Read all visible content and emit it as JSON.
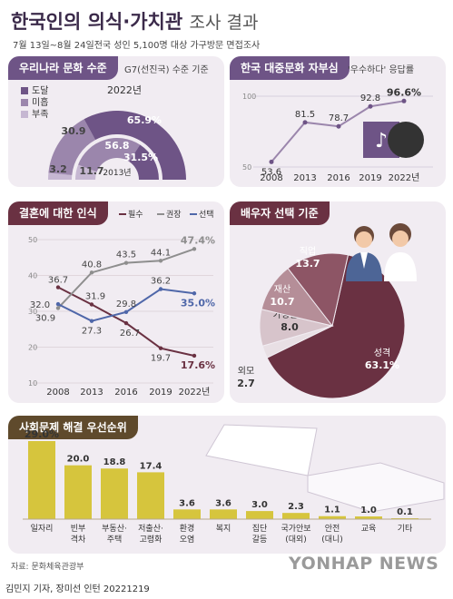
{
  "header": {
    "title_bold": "한국인의 의식·가치관",
    "title_light": "조사 결과",
    "subtitle": "7월 13일~8월 24일전국 성인 5,100명 대상 가구방문 면접조사"
  },
  "footer": {
    "source": "자료: 문화체육관광부",
    "credit": "김민지 기자, 장미선 인턴  20221219",
    "watermark": "YONHAP NEWS"
  },
  "colors": {
    "dark_purple": "#6e5486",
    "mid_purple": "#9b86ac",
    "light_purple": "#c6b7d2",
    "maroon": "#6a3142",
    "gray": "#8e8e8e",
    "blue": "#4f67a9",
    "mustard": "#d6c53d",
    "panel_bg": "#f1ecf2"
  },
  "chart_data": [
    {
      "id": "culture_level",
      "type": "pie",
      "title": "우리나라 문화 수준",
      "note": "G7(선진국) 수준 기준",
      "legend": [
        "도달",
        "미흡",
        "부족"
      ],
      "rings": [
        {
          "year": "2022년",
          "values": [
            65.9,
            30.9,
            3.2
          ],
          "labels": [
            "65.9%",
            "30.9",
            "3.2"
          ]
        },
        {
          "year": "2013년",
          "values": [
            31.5,
            56.8,
            11.7
          ],
          "labels": [
            "31.5%",
            "56.8",
            "11.7"
          ]
        }
      ]
    },
    {
      "id": "pride",
      "type": "line",
      "title": "한국 대중문화 자부심",
      "note": "'우수하다' 응답률",
      "categories": [
        "2008",
        "2013",
        "2016",
        "2019",
        "2022년"
      ],
      "values": [
        53.6,
        81.5,
        78.7,
        92.8,
        96.6
      ],
      "value_labels": [
        "53.6",
        "81.5",
        "78.7",
        "92.8",
        "96.6%"
      ],
      "yticks": [
        50,
        100
      ],
      "ylim": [
        50,
        100
      ]
    },
    {
      "id": "marriage",
      "type": "line",
      "title": "결혼에 대한 인식",
      "categories": [
        "2008",
        "2013",
        "2016",
        "2019",
        "2022년"
      ],
      "yticks": [
        10,
        20,
        30,
        40,
        50
      ],
      "ylim": [
        10,
        50
      ],
      "series": [
        {
          "name": "필수",
          "values": [
            36.7,
            31.9,
            26.7,
            19.7,
            17.6
          ],
          "labels": [
            "36.7",
            "31.9",
            "26.7",
            "19.7",
            "17.6%"
          ]
        },
        {
          "name": "권장",
          "values": [
            30.9,
            40.8,
            43.5,
            44.1,
            47.4
          ],
          "labels": [
            "30.9",
            "40.8",
            "43.5",
            "44.1",
            "47.4%"
          ]
        },
        {
          "name": "선택",
          "values": [
            32.0,
            27.3,
            29.8,
            36.2,
            35.0
          ],
          "labels": [
            "32.0",
            "27.3",
            "29.8",
            "36.2",
            "35.0%"
          ]
        }
      ]
    },
    {
      "id": "spouse",
      "type": "pie",
      "title": "배우자 선택 기준",
      "slices": [
        {
          "name": "성격",
          "value": 63.1,
          "label": "63.1%"
        },
        {
          "name": "외모",
          "value": 2.7,
          "label": "2.7"
        },
        {
          "name": "가정환경",
          "value": 8.0,
          "label": "8.0"
        },
        {
          "name": "재산",
          "value": 10.7,
          "label": "10.7"
        },
        {
          "name": "직업",
          "value": 13.7,
          "label": "13.7"
        }
      ]
    },
    {
      "id": "priority",
      "type": "bar",
      "title": "사회문제 해결 우선순위",
      "categories": [
        [
          "일자리"
        ],
        [
          "빈부",
          "격차"
        ],
        [
          "부동산·",
          "주택"
        ],
        [
          "저출산·",
          "고령화"
        ],
        [
          "환경",
          "오염"
        ],
        [
          "복지"
        ],
        [
          "집단",
          "갈등"
        ],
        [
          "국가안보",
          "(대외)"
        ],
        [
          "안전",
          "(대니)"
        ],
        [
          "교육"
        ],
        [
          "기타"
        ]
      ],
      "values": [
        29.0,
        20.0,
        18.8,
        17.4,
        3.6,
        3.6,
        3.0,
        2.3,
        1.1,
        1.0,
        0.1
      ],
      "value_labels": [
        "29.0%",
        "20.0",
        "18.8",
        "17.4",
        "3.6",
        "3.6",
        "3.0",
        "2.3",
        "1.1",
        "1.0",
        "0.1"
      ]
    }
  ]
}
